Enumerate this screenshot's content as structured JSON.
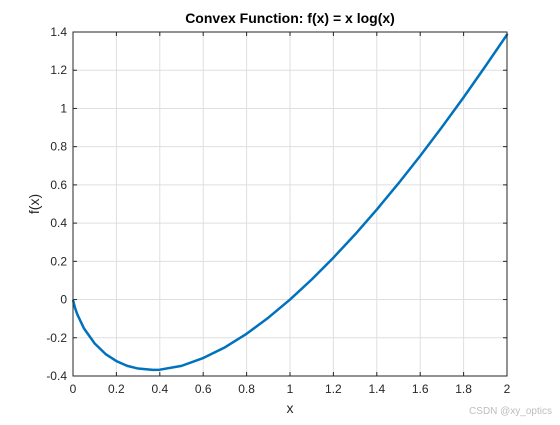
{
  "chart_data": {
    "type": "line",
    "title": "Convex Function: f(x) = x log(x)",
    "xlabel": "x",
    "ylabel": "f(x)",
    "xlim": [
      0,
      2
    ],
    "ylim": [
      -0.4,
      1.4
    ],
    "grid": true,
    "xticks": [
      0,
      0.2,
      0.4,
      0.6,
      0.8,
      1,
      1.2,
      1.4,
      1.6,
      1.8,
      2
    ],
    "xtick_labels": [
      "0",
      "0.2",
      "0.4",
      "0.6",
      "0.8",
      "1",
      "1.2",
      "1.4",
      "1.6",
      "1.8",
      "2"
    ],
    "yticks": [
      -0.4,
      -0.2,
      0,
      0.2,
      0.4,
      0.6,
      0.8,
      1,
      1.2,
      1.4
    ],
    "ytick_labels": [
      "-0.4",
      "-0.2",
      "0",
      "0.2",
      "0.4",
      "0.6",
      "0.8",
      "1",
      "1.2",
      "1.4"
    ],
    "series": [
      {
        "color": "#0072bd",
        "x": [
          0.001,
          0.01,
          0.02,
          0.05,
          0.1,
          0.15,
          0.2,
          0.25,
          0.3,
          0.368,
          0.4,
          0.5,
          0.6,
          0.7,
          0.8,
          0.9,
          1.0,
          1.1,
          1.2,
          1.3,
          1.4,
          1.5,
          1.6,
          1.7,
          1.8,
          1.9,
          2.0
        ],
        "y": [
          -0.007,
          -0.046,
          -0.078,
          -0.15,
          -0.23,
          -0.285,
          -0.322,
          -0.347,
          -0.361,
          -0.368,
          -0.367,
          -0.347,
          -0.306,
          -0.25,
          -0.179,
          -0.095,
          0.0,
          0.105,
          0.219,
          0.341,
          0.471,
          0.608,
          0.752,
          0.902,
          1.058,
          1.22,
          1.386
        ]
      }
    ]
  },
  "watermark": "CSDN @xy_optics"
}
